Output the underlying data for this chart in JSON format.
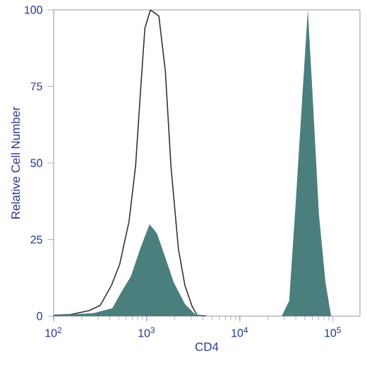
{
  "chart_data": {
    "type": "area",
    "xlabel": "CD4",
    "ylabel": "Relative Cell Number",
    "log": "x",
    "xlim": [
      100,
      195000
    ],
    "xticks": [
      {
        "value": 100,
        "label": "10$^{2}$"
      },
      {
        "value": 1000,
        "label": "10$^{3}$"
      },
      {
        "value": 10000,
        "label": "10$^{4}$"
      },
      {
        "value": 100000,
        "label": "10$^{5}$"
      }
    ],
    "ylim": [
      0,
      100
    ],
    "yticks": [
      0,
      25,
      50,
      75,
      100
    ],
    "grid": false,
    "series": [
      {
        "type": "line",
        "color": "#333333",
        "x": [
          100,
          151,
          240,
          316,
          417,
          513,
          646,
          759,
          851,
          955,
          1096,
          1349,
          1585,
          1820,
          2188,
          2570,
          3090,
          3467,
          4365
        ],
        "values": [
          0.3,
          0.5,
          1.8,
          3.5,
          10,
          17,
          31,
          49,
          72,
          94,
          100,
          98,
          80,
          49,
          22,
          10,
          3,
          0.3,
          0
        ]
      },
      {
        "color": "#4a7f7e",
        "x": [
          100,
          269,
          427,
          537,
          676,
          851,
          1072,
          1288,
          1549,
          1950,
          2570,
          3311,
          3981
        ],
        "values": [
          0.3,
          1,
          2.6,
          8,
          13,
          22,
          30,
          27,
          20,
          11,
          4,
          0.6,
          0
        ]
      },
      {
        "color": "#4a7f7e",
        "x": [
          28184,
          33884,
          39811,
          47863,
          53703,
          60256,
          70795,
          83176,
          95499
        ],
        "values": [
          0,
          5,
          37,
          76,
          100,
          73,
          33,
          11,
          0
        ]
      }
    ]
  }
}
